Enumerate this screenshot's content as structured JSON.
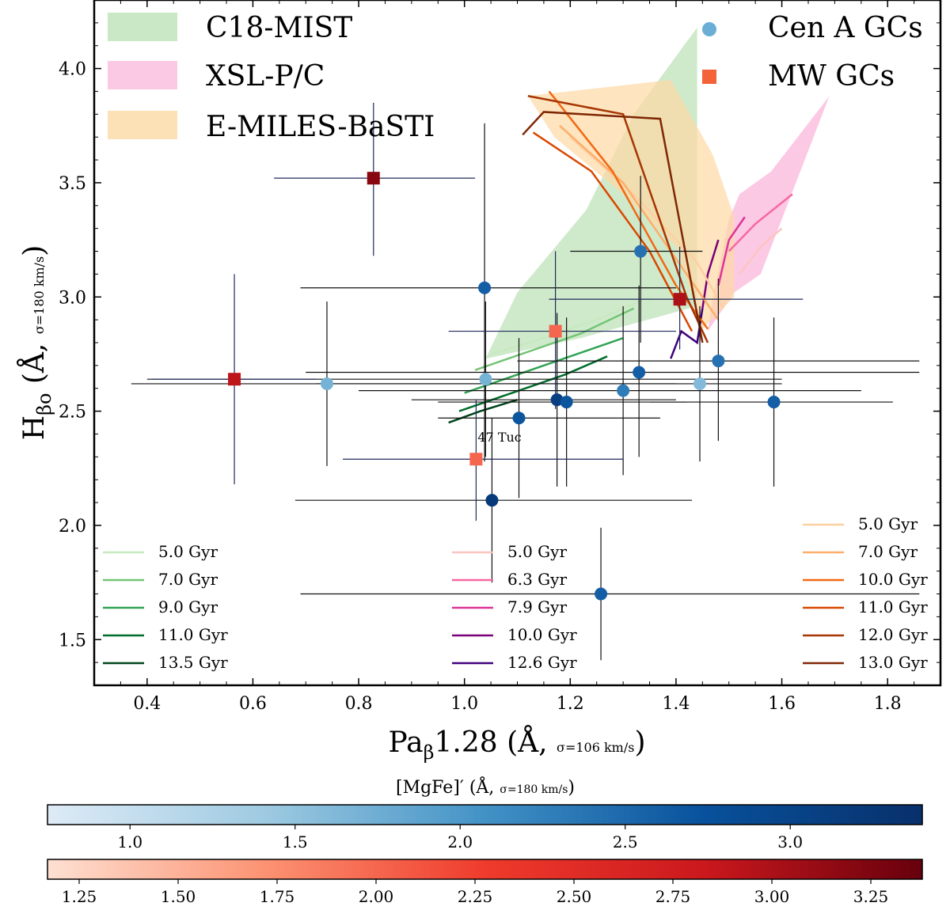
{
  "chart_data": {
    "type": "scatter",
    "axes": {
      "xlabel": "Paβ1.28 (Å, σ=106 km/s)",
      "xlabel_main": "Pa",
      "xlabel_sub": "β",
      "xlabel_mid": "1.28 (Å,",
      "xlabel_small": "σ=106 km/s",
      "xlabel_close": ")",
      "ylabel": "Hβo (Å, σ=180 km/s)",
      "ylabel_main": "H",
      "ylabel_sub": "βo",
      "ylabel_mid": "(Å,",
      "ylabel_small": "σ=180 km/s",
      "ylabel_close": ")",
      "xlim": [
        0.3,
        1.9
      ],
      "ylim": [
        1.3,
        4.3
      ],
      "xticks": [
        0.4,
        0.6,
        0.8,
        1.0,
        1.2,
        1.4,
        1.6,
        1.8
      ],
      "yticks": [
        1.5,
        2.0,
        2.5,
        3.0,
        3.5,
        4.0
      ],
      "xtick_labels": [
        "0.4",
        "0.6",
        "0.8",
        "1.0",
        "1.2",
        "1.4",
        "1.6",
        "1.8"
      ],
      "ytick_labels": [
        "1.5",
        "2.0",
        "2.5",
        "3.0",
        "3.5",
        "4.0"
      ]
    },
    "legend_main": [
      {
        "label": "C18-MIST",
        "kind": "patch",
        "color": "#a8d8a0"
      },
      {
        "label": "XSL-P/C",
        "kind": "patch",
        "color": "#f9b2d8"
      },
      {
        "label": "E-MILES-BaSTI",
        "kind": "patch",
        "color": "#fdd9a4"
      },
      {
        "label": "Cen A GCs",
        "kind": "circle",
        "color": "#6aaed6"
      },
      {
        "label": "MW GCs",
        "kind": "square",
        "color": "#f4623a"
      }
    ],
    "legend_ages": [
      {
        "model": "C18-MIST",
        "entries": [
          {
            "label": "5.0 Gyr",
            "color": "#c7e9c0"
          },
          {
            "label": "7.0 Gyr",
            "color": "#74c476"
          },
          {
            "label": "9.0 Gyr",
            "color": "#31a354"
          },
          {
            "label": "11.0 Gyr",
            "color": "#006d2c"
          },
          {
            "label": "13.5 Gyr",
            "color": "#00441b"
          }
        ]
      },
      {
        "model": "XSL-P/C",
        "entries": [
          {
            "label": "5.0 Gyr",
            "color": "#fcc5c0"
          },
          {
            "label": "6.3 Gyr",
            "color": "#f768a1"
          },
          {
            "label": "7.9 Gyr",
            "color": "#dd3497"
          },
          {
            "label": "10.0 Gyr",
            "color": "#7a0177"
          },
          {
            "label": "12.6 Gyr",
            "color": "#3f007d"
          }
        ]
      },
      {
        "model": "E-MILES-BaSTI",
        "entries": [
          {
            "label": "5.0 Gyr",
            "color": "#fdd0a2"
          },
          {
            "label": "7.0 Gyr",
            "color": "#fdae6b"
          },
          {
            "label": "10.0 Gyr",
            "color": "#f16913"
          },
          {
            "label": "11.0 Gyr",
            "color": "#d94801"
          },
          {
            "label": "12.0 Gyr",
            "color": "#a63603"
          },
          {
            "label": "13.0 Gyr",
            "color": "#7f2704"
          }
        ]
      }
    ],
    "cen_a_gcs": [
      {
        "x": 1.333,
        "y": 3.2,
        "xerr": [
          1.2,
          1.45
        ],
        "yerr": [
          2.8,
          3.53
        ],
        "mgfe": 2.4
      },
      {
        "x": 1.038,
        "y": 3.04,
        "xerr": [
          0.69,
          1.4
        ],
        "yerr": [
          2.28,
          3.76
        ],
        "mgfe": 2.6
      },
      {
        "x": 0.74,
        "y": 2.62,
        "xerr": [
          0.37,
          1.4
        ],
        "yerr": [
          2.26,
          2.98
        ],
        "mgfe": 1.7
      },
      {
        "x": 1.04,
        "y": 2.64,
        "xerr": [
          0.4,
          1.6
        ],
        "yerr": [
          2.3,
          2.98
        ],
        "mgfe": 1.7
      },
      {
        "x": 1.33,
        "y": 2.67,
        "xerr": [
          0.7,
          1.86
        ],
        "yerr": [
          2.3,
          3.05
        ],
        "mgfe": 2.6
      },
      {
        "x": 1.3,
        "y": 2.59,
        "xerr": [
          0.8,
          1.75
        ],
        "yerr": [
          2.22,
          2.96
        ],
        "mgfe": 2.3
      },
      {
        "x": 1.445,
        "y": 2.62,
        "xerr": [
          0.72,
          1.6
        ],
        "yerr": [
          2.28,
          2.96
        ],
        "mgfe": 1.6
      },
      {
        "x": 1.48,
        "y": 2.72,
        "xerr": [
          1.1,
          1.86
        ],
        "yerr": [
          2.37,
          3.08
        ],
        "mgfe": 2.4
      },
      {
        "x": 1.585,
        "y": 2.54,
        "xerr": [
          1.35,
          1.81
        ],
        "yerr": [
          2.17,
          2.91
        ],
        "mgfe": 2.6
      },
      {
        "x": 1.175,
        "y": 2.55,
        "xerr": [
          0.9,
          1.4
        ],
        "yerr": [
          2.17,
          2.93
        ],
        "mgfe": 3.1
      },
      {
        "x": 1.193,
        "y": 2.54,
        "xerr": [
          0.95,
          1.42
        ],
        "yerr": [
          2.17,
          2.91
        ],
        "mgfe": 2.7
      },
      {
        "x": 1.103,
        "y": 2.47,
        "xerr": [
          0.95,
          1.37
        ],
        "yerr": [
          2.12,
          2.82
        ],
        "mgfe": 2.7
      },
      {
        "x": 1.052,
        "y": 2.11,
        "xerr": [
          0.68,
          1.43
        ],
        "yerr": [
          1.75,
          2.47
        ],
        "mgfe": 3.2
      },
      {
        "x": 1.258,
        "y": 1.7,
        "xerr": [
          0.69,
          1.86
        ],
        "yerr": [
          1.41,
          1.99
        ],
        "mgfe": 2.6
      }
    ],
    "mw_gcs": [
      {
        "x": 0.828,
        "y": 3.52,
        "xerr": [
          0.64,
          1.02
        ],
        "yerr": [
          3.18,
          3.85
        ],
        "mgfe": 3.2,
        "label": ""
      },
      {
        "x": 0.565,
        "y": 2.64,
        "xerr": [
          0.41,
          0.72
        ],
        "yerr": [
          2.18,
          3.1
        ],
        "mgfe": 2.9,
        "label": ""
      },
      {
        "x": 1.407,
        "y": 2.99,
        "xerr": [
          1.16,
          1.64
        ],
        "yerr": [
          2.77,
          3.22
        ],
        "mgfe": 3.0,
        "label": ""
      },
      {
        "x": 1.172,
        "y": 2.85,
        "xerr": [
          0.97,
          1.4
        ],
        "yerr": [
          2.51,
          3.2
        ],
        "mgfe": 2.0,
        "label": ""
      },
      {
        "x": 1.022,
        "y": 2.29,
        "xerr": [
          0.77,
          1.3
        ],
        "yerr": [
          2.02,
          2.55
        ],
        "mgfe": 2.0,
        "label": "47 Tuc"
      }
    ],
    "model_regions": {
      "C18-MIST": [
        [
          1.44,
          4.18
        ],
        [
          1.32,
          3.8
        ],
        [
          1.23,
          3.38
        ],
        [
          1.1,
          3.02
        ],
        [
          1.04,
          2.73
        ],
        [
          1.1,
          2.76
        ],
        [
          1.22,
          2.82
        ],
        [
          1.44,
          2.96
        ]
      ],
      "XSL-P/C": [
        [
          1.69,
          3.88
        ],
        [
          1.58,
          3.55
        ],
        [
          1.52,
          3.45
        ],
        [
          1.5,
          3.34
        ],
        [
          1.47,
          3.0
        ],
        [
          1.46,
          2.85
        ],
        [
          1.51,
          3.02
        ],
        [
          1.56,
          3.1
        ]
      ],
      "E-MILES-BaSTI": [
        [
          1.39,
          3.95
        ],
        [
          1.12,
          3.88
        ],
        [
          1.17,
          3.7
        ],
        [
          1.3,
          3.45
        ],
        [
          1.4,
          3.22
        ],
        [
          1.45,
          2.86
        ],
        [
          1.51,
          3.0
        ],
        [
          1.51,
          3.35
        ],
        [
          1.47,
          3.62
        ]
      ]
    },
    "model_lines": {
      "C18-MIST": [
        {
          "age": "5.0 Gyr",
          "pts": [
            [
              1.05,
              2.75
            ],
            [
              1.15,
              2.82
            ],
            [
              1.25,
              2.9
            ],
            [
              1.35,
              3.0
            ]
          ]
        },
        {
          "age": "7.0 Gyr",
          "pts": [
            [
              1.02,
              2.68
            ],
            [
              1.12,
              2.76
            ],
            [
              1.22,
              2.84
            ],
            [
              1.32,
              2.95
            ]
          ]
        },
        {
          "age": "9.0 Gyr",
          "pts": [
            [
              1.0,
              2.58
            ],
            [
              1.1,
              2.66
            ],
            [
              1.2,
              2.74
            ],
            [
              1.3,
              2.82
            ]
          ]
        },
        {
          "age": "11.0 Gyr",
          "pts": [
            [
              0.99,
              2.5
            ],
            [
              1.09,
              2.58
            ],
            [
              1.19,
              2.66
            ],
            [
              1.27,
              2.74
            ]
          ]
        },
        {
          "age": "13.5 Gyr",
          "pts": [
            [
              0.97,
              2.45
            ],
            [
              1.03,
              2.5
            ],
            [
              1.1,
              2.55
            ]
          ]
        }
      ],
      "XSL-P/C": [
        {
          "age": "5.0 Gyr",
          "pts": [
            [
              1.52,
              3.1
            ],
            [
              1.56,
              3.22
            ],
            [
              1.6,
              3.3
            ]
          ]
        },
        {
          "age": "6.3 Gyr",
          "pts": [
            [
              1.5,
              3.2
            ],
            [
              1.55,
              3.32
            ],
            [
              1.62,
              3.45
            ]
          ]
        },
        {
          "age": "7.9 Gyr",
          "pts": [
            [
              1.48,
              3.05
            ],
            [
              1.5,
              3.25
            ],
            [
              1.53,
              3.35
            ]
          ]
        },
        {
          "age": "10.0 Gyr",
          "pts": [
            [
              1.45,
              2.95
            ],
            [
              1.46,
              3.1
            ],
            [
              1.48,
              3.25
            ]
          ]
        },
        {
          "age": "12.6 Gyr",
          "pts": [
            [
              1.39,
              2.73
            ],
            [
              1.41,
              2.85
            ],
            [
              1.44,
              2.8
            ],
            [
              1.45,
              2.95
            ]
          ]
        }
      ],
      "E-MILES-BaSTI": [
        {
          "age": "5.0 Gyr",
          "pts": [
            [
              1.2,
              3.7
            ],
            [
              1.32,
              3.45
            ],
            [
              1.44,
              3.15
            ],
            [
              1.49,
              2.95
            ]
          ]
        },
        {
          "age": "7.0 Gyr",
          "pts": [
            [
              1.18,
              3.75
            ],
            [
              1.3,
              3.5
            ],
            [
              1.42,
              3.1
            ],
            [
              1.48,
              2.9
            ]
          ]
        },
        {
          "age": "10.0 Gyr",
          "pts": [
            [
              1.16,
              3.9
            ],
            [
              1.28,
              3.55
            ],
            [
              1.4,
              3.05
            ],
            [
              1.46,
              2.86
            ]
          ]
        },
        {
          "age": "11.0 Gyr",
          "pts": [
            [
              1.13,
              3.72
            ],
            [
              1.24,
              3.55
            ],
            [
              1.35,
              3.2
            ],
            [
              1.43,
              2.85
            ]
          ]
        },
        {
          "age": "12.0 Gyr",
          "pts": [
            [
              1.12,
              3.88
            ],
            [
              1.3,
              3.8
            ],
            [
              1.42,
              3.0
            ],
            [
              1.46,
              2.8
            ]
          ]
        },
        {
          "age": "13.0 Gyr",
          "pts": [
            [
              1.11,
              3.71
            ],
            [
              1.15,
              3.81
            ],
            [
              1.37,
              3.78
            ],
            [
              1.45,
              2.8
            ]
          ]
        }
      ]
    },
    "colorbars": [
      {
        "name": "[MgFe]′",
        "label": "[MgFe]′ (Å, σ=180 km/s)",
        "label_main": "[MgFe]′ (Å,",
        "label_small": "σ=180 km/s",
        "label_close": ")",
        "cmap": [
          "#deebf7",
          "#9ecae1",
          "#4292c6",
          "#08519c",
          "#08306b"
        ],
        "range": [
          0.75,
          3.4
        ],
        "ticks": [
          1.0,
          1.5,
          2.0,
          2.5,
          3.0
        ],
        "tick_labels": [
          "1.0",
          "1.5",
          "2.0",
          "2.5",
          "3.0"
        ]
      },
      {
        "name": "MW",
        "label": "",
        "cmap": [
          "#fee0d2",
          "#fc9272",
          "#ef3b2c",
          "#cb181d",
          "#67000d"
        ],
        "range": [
          1.17,
          3.38
        ],
        "ticks": [
          1.25,
          1.5,
          1.75,
          2.0,
          2.25,
          2.5,
          2.75,
          3.0,
          3.25
        ],
        "tick_labels": [
          "1.25",
          "1.50",
          "1.75",
          "2.00",
          "2.25",
          "2.50",
          "2.75",
          "3.00",
          "3.25"
        ]
      }
    ]
  }
}
